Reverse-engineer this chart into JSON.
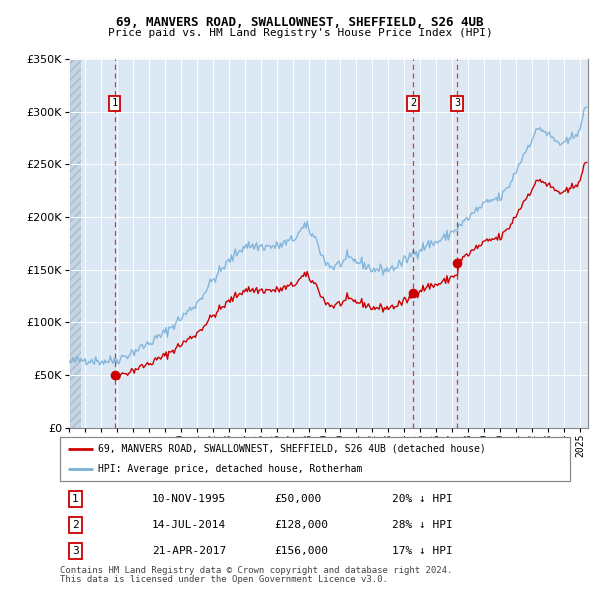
{
  "title1": "69, MANVERS ROAD, SWALLOWNEST, SHEFFIELD, S26 4UB",
  "title2": "Price paid vs. HM Land Registry's House Price Index (HPI)",
  "ylim": [
    0,
    350000
  ],
  "yticks": [
    0,
    50000,
    100000,
    150000,
    200000,
    250000,
    300000,
    350000
  ],
  "hpi_color": "#7ab0d8",
  "price_color": "#cc0000",
  "bg_color": "#dce9f5",
  "sale_dates_num": [
    1995.861,
    2014.535,
    2017.306
  ],
  "sale_prices": [
    50000,
    128000,
    156000
  ],
  "sale_labels": [
    "1",
    "2",
    "3"
  ],
  "legend_label1": "69, MANVERS ROAD, SWALLOWNEST, SHEFFIELD, S26 4UB (detached house)",
  "legend_label2": "HPI: Average price, detached house, Rotherham",
  "table_rows": [
    [
      "1",
      "10-NOV-1995",
      "£50,000",
      "20% ↓ HPI"
    ],
    [
      "2",
      "14-JUL-2014",
      "£128,000",
      "28% ↓ HPI"
    ],
    [
      "3",
      "21-APR-2017",
      "£156,000",
      "17% ↓ HPI"
    ]
  ],
  "footnote1": "Contains HM Land Registry data © Crown copyright and database right 2024.",
  "footnote2": "This data is licensed under the Open Government Licence v3.0."
}
